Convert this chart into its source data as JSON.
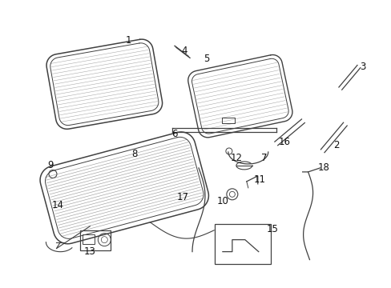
{
  "bg_color": "#ffffff",
  "line_color": "#404040",
  "label_color": "#111111",
  "fig_width": 4.89,
  "fig_height": 3.6,
  "dpi": 100
}
